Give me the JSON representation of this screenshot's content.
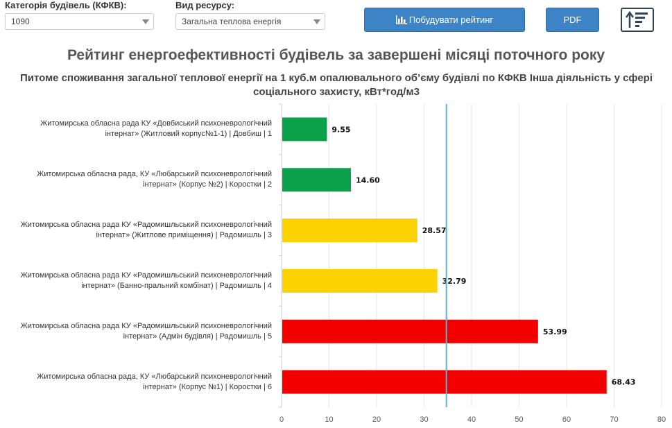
{
  "filters": {
    "category_label": "Категорія будівель (КФКВ):",
    "category_value": "1090",
    "resource_label": "Вид ресурсу:",
    "resource_value": "Загальна теплова енергія"
  },
  "toolbar": {
    "build_label": "Побудувати рейтинг",
    "pdf_label": "PDF",
    "build_icon": "bar-chart-icon",
    "sort_icon": "sort-ascending-icon"
  },
  "chart_data": {
    "type": "bar",
    "orientation": "horizontal",
    "title": "Рейтинг енергоефективності будівель за завершені місяці поточного року",
    "subtitle": "Питоме споживання загальної теплової енергії на 1 куб.м опалювального об’єму будівлі по КФКВ Інша діяльність у сфері соціального захисту, кВт*год/м3",
    "categories": [
      "Житомирська обласна рада КУ «Довбиський психоневрологічний інтернат» (Житловий корпус№1-1) | Довбиш | 1",
      "Житомирська обласна рада, КУ «Любарський психоневрологічний інтернат» (Корпус №2) | Коростки | 2",
      "Житомирська обласна рада КУ «Радомишльський психоневрологічний інтернат» (Житлове приміщення) | Радомишль | 3",
      "Житомирська обласна рада КУ «Радомишльський психоневрологічний інтернат» (Банно-пральний комбінат) | Радомишль | 4",
      "Житомирська обласна рада КУ «Радомишльський психоневрологічний інтернат» (Адмін будівля) | Радомишль | 5",
      "Житомирська обласна рада, КУ «Любарський психоневрологічний інтернат» (Корпус №1) | Коростки | 6"
    ],
    "values": [
      9.55,
      14.6,
      28.57,
      32.79,
      53.99,
      68.43
    ],
    "value_labels": [
      "9.55",
      "14.60",
      "28.57",
      "32.79",
      "53.99",
      "68.43"
    ],
    "bar_colors": [
      "#0ba14a",
      "#0ba14a",
      "#fcd200",
      "#fcd200",
      "#f20000",
      "#f20000"
    ],
    "reference_line": 34.7,
    "reference_color": "#5ab4d6",
    "xlim": [
      0,
      80
    ],
    "xticks": [
      0,
      10,
      20,
      30,
      40,
      50,
      60,
      70,
      80
    ],
    "grid": true
  }
}
